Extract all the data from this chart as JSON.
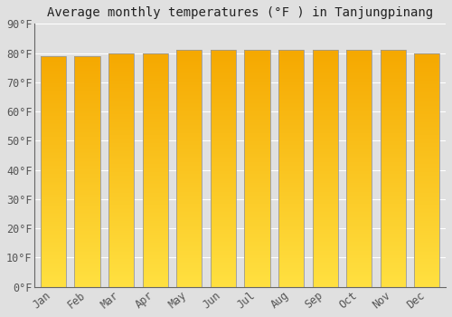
{
  "title": "Average monthly temperatures (°F ) in Tanjungpinang",
  "months": [
    "Jan",
    "Feb",
    "Mar",
    "Apr",
    "May",
    "Jun",
    "Jul",
    "Aug",
    "Sep",
    "Oct",
    "Nov",
    "Dec"
  ],
  "values": [
    79,
    79,
    80,
    80,
    81,
    81,
    81,
    81,
    81,
    81,
    81,
    80
  ],
  "ylim": [
    0,
    90
  ],
  "yticks": [
    0,
    10,
    20,
    30,
    40,
    50,
    60,
    70,
    80,
    90
  ],
  "ytick_labels": [
    "0°F",
    "10°F",
    "20°F",
    "30°F",
    "40°F",
    "50°F",
    "60°F",
    "70°F",
    "80°F",
    "90°F"
  ],
  "bar_color_top": "#F5A800",
  "bar_color_bottom": "#FFE040",
  "bar_edge_color": "#999999",
  "background_color": "#e0e0e0",
  "grid_color": "#ffffff",
  "title_fontsize": 10,
  "tick_fontsize": 8.5,
  "title_color": "#222222",
  "tick_color": "#555555",
  "bar_width": 0.75
}
